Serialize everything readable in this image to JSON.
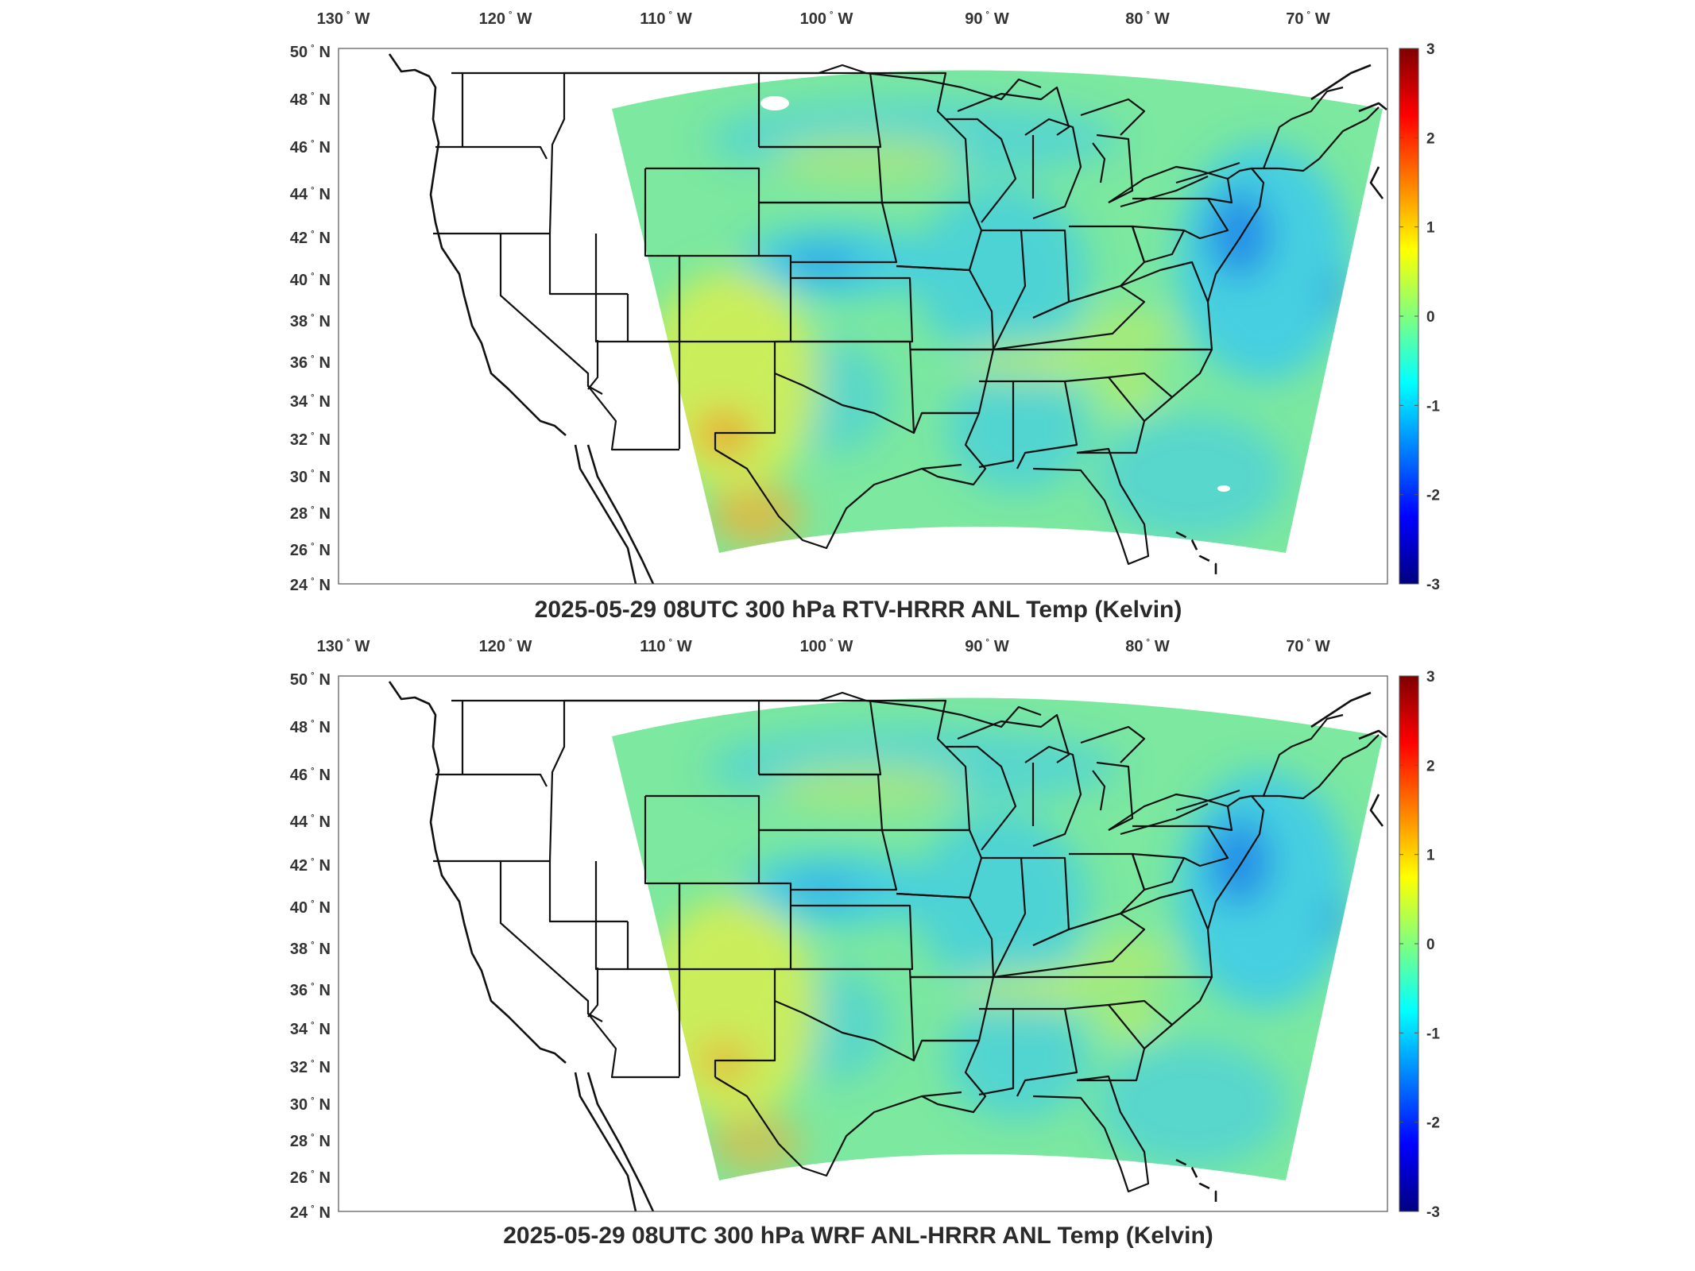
{
  "panels": [
    {
      "title": "2025-05-29 08UTC 300 hPa RTV-HRRR ANL Temp (Kelvin)",
      "variant": "rtv"
    },
    {
      "title": "2025-05-29 08UTC 300 hPa WRF ANL-HRRR ANL Temp (Kelvin)",
      "variant": "wrf"
    }
  ],
  "axes": {
    "lon_labels": [
      {
        "deg": "130",
        "hemi": "W"
      },
      {
        "deg": "120",
        "hemi": "W"
      },
      {
        "deg": "110",
        "hemi": "W"
      },
      {
        "deg": "100",
        "hemi": "W"
      },
      {
        "deg": "90",
        "hemi": "W"
      },
      {
        "deg": "80",
        "hemi": "W"
      },
      {
        "deg": "70",
        "hemi": "W"
      }
    ],
    "lat_labels": [
      {
        "deg": "50",
        "hemi": "N"
      },
      {
        "deg": "48",
        "hemi": "N"
      },
      {
        "deg": "46",
        "hemi": "N"
      },
      {
        "deg": "44",
        "hemi": "N"
      },
      {
        "deg": "42",
        "hemi": "N"
      },
      {
        "deg": "40",
        "hemi": "N"
      },
      {
        "deg": "38",
        "hemi": "N"
      },
      {
        "deg": "36",
        "hemi": "N"
      },
      {
        "deg": "34",
        "hemi": "N"
      },
      {
        "deg": "32",
        "hemi": "N"
      },
      {
        "deg": "30",
        "hemi": "N"
      },
      {
        "deg": "28",
        "hemi": "N"
      },
      {
        "deg": "26",
        "hemi": "N"
      },
      {
        "deg": "24",
        "hemi": "N"
      }
    ],
    "degree_symbol": "°"
  },
  "colorbar": {
    "ticks": [
      "3",
      "2",
      "1",
      "0",
      "-1",
      "-2",
      "-3"
    ],
    "range": [
      -3,
      3
    ],
    "colormap": "jet",
    "colors": [
      "#00007f",
      "#0000ff",
      "#007fff",
      "#00ffff",
      "#7fff7f",
      "#ffff00",
      "#ff7f00",
      "#ff0000",
      "#7f0000"
    ]
  },
  "field_colors": {
    "base": "#7ce8a0",
    "cool": "#38c8f0",
    "cold": "#1f7fe8",
    "warm": "#d8ee50",
    "hot": "#f0b030",
    "hottest": "#d86020"
  }
}
